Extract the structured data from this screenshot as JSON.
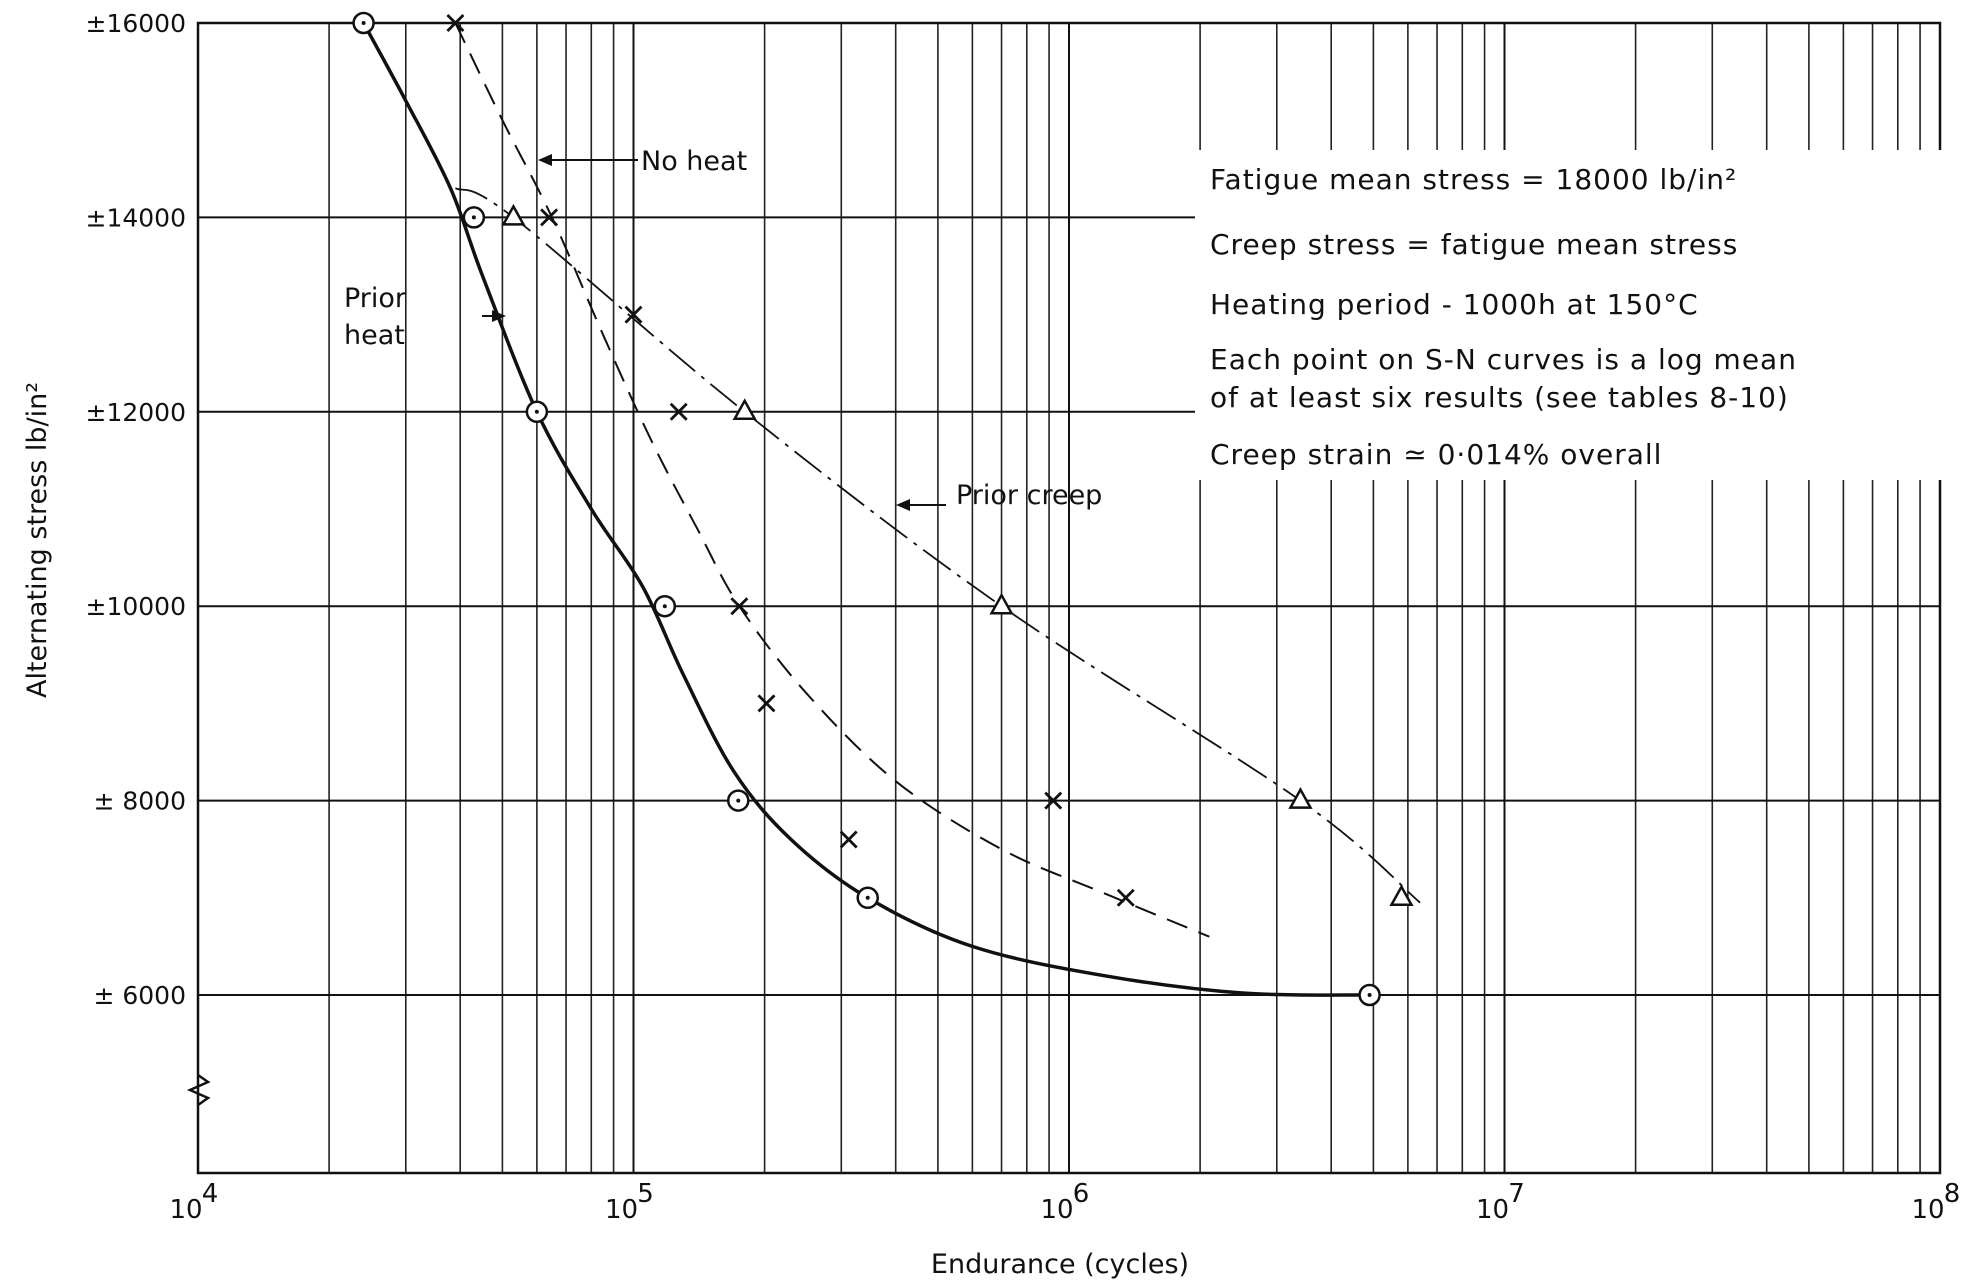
{
  "chart_data": {
    "type": "line",
    "xscale": "log",
    "xlim": [
      10000,
      100000000
    ],
    "ylim": [
      4000,
      16000
    ],
    "xlabel": "Endurance (cycles)",
    "ylabel": "Alternating stress lb/in²",
    "x_ticks": [
      {
        "value": 10000,
        "base": "10",
        "exp": "4"
      },
      {
        "value": 100000,
        "base": "10",
        "exp": "5"
      },
      {
        "value": 1000000,
        "base": "10",
        "exp": "6"
      },
      {
        "value": 10000000,
        "base": "10",
        "exp": "7"
      },
      {
        "value": 100000000,
        "base": "10",
        "exp": "8"
      }
    ],
    "y_ticks": [
      {
        "value": 16000,
        "label": "±16000"
      },
      {
        "value": 14000,
        "label": "±14000"
      },
      {
        "value": 12000,
        "label": "±12000"
      },
      {
        "value": 10000,
        "label": "±10000"
      },
      {
        "value": 8000,
        "label": "± 8000"
      },
      {
        "value": 6000,
        "label": "± 6000"
      }
    ],
    "series": [
      {
        "name": "Prior heat",
        "marker": "circle",
        "line_style": "solid-thick",
        "points": [
          [
            24000,
            16000
          ],
          [
            43000,
            14000
          ],
          [
            60000,
            12000
          ],
          [
            118000,
            10000
          ],
          [
            174000,
            8000
          ],
          [
            345000,
            7000
          ],
          [
            4900000,
            6000
          ]
        ],
        "curve": [
          [
            24000,
            16000
          ],
          [
            30000,
            15200
          ],
          [
            38000,
            14300
          ],
          [
            45000,
            13400
          ],
          [
            60000,
            12000
          ],
          [
            80000,
            11000
          ],
          [
            105000,
            10200
          ],
          [
            130000,
            9300
          ],
          [
            170000,
            8300
          ],
          [
            230000,
            7600
          ],
          [
            345000,
            7000
          ],
          [
            600000,
            6500
          ],
          [
            1200000,
            6200
          ],
          [
            2500000,
            6020
          ],
          [
            4900000,
            6000
          ]
        ]
      },
      {
        "name": "No heat",
        "marker": "cross",
        "line_style": "dashed",
        "points": [
          [
            39000,
            16000
          ],
          [
            64000,
            14000
          ],
          [
            100000,
            13000
          ],
          [
            127000,
            12000
          ],
          [
            175000,
            10000
          ],
          [
            202000,
            9000
          ],
          [
            312000,
            7600
          ],
          [
            920000,
            8000
          ],
          [
            1350000,
            7000
          ]
        ],
        "curve": [
          [
            39000,
            16000
          ],
          [
            50000,
            15000
          ],
          [
            65000,
            14000
          ],
          [
            85000,
            12800
          ],
          [
            110000,
            11700
          ],
          [
            140000,
            10800
          ],
          [
            175000,
            10000
          ],
          [
            250000,
            9100
          ],
          [
            400000,
            8200
          ],
          [
            700000,
            7500
          ],
          [
            1200000,
            7050
          ],
          [
            2100000,
            6600
          ]
        ]
      },
      {
        "name": "Prior creep",
        "marker": "triangle",
        "line_style": "dash-dot",
        "points": [
          [
            53000,
            14000
          ],
          [
            180000,
            12000
          ],
          [
            700000,
            10000
          ],
          [
            3400000,
            8000
          ],
          [
            5800000,
            7000
          ]
        ],
        "curve": [
          [
            39000,
            14300
          ],
          [
            53000,
            14000
          ],
          [
            180000,
            12000
          ],
          [
            700000,
            10000
          ],
          [
            3400000,
            8000
          ],
          [
            6400000,
            6950
          ]
        ]
      }
    ],
    "annotations": {
      "no_heat": "No heat",
      "prior_heat_1": "Prior",
      "prior_heat_2": "heat",
      "prior_creep": "Prior creep"
    },
    "notes": [
      "Fatigue mean stress = 18000 lb/in²",
      "Creep stress = fatigue mean stress",
      "Heating period - 1000h at 150°C",
      "Each point on S-N curves is a log mean",
      "of at least six results (see tables 8-10)",
      "Creep strain ≃ 0·014% overall"
    ],
    "grid": true
  }
}
